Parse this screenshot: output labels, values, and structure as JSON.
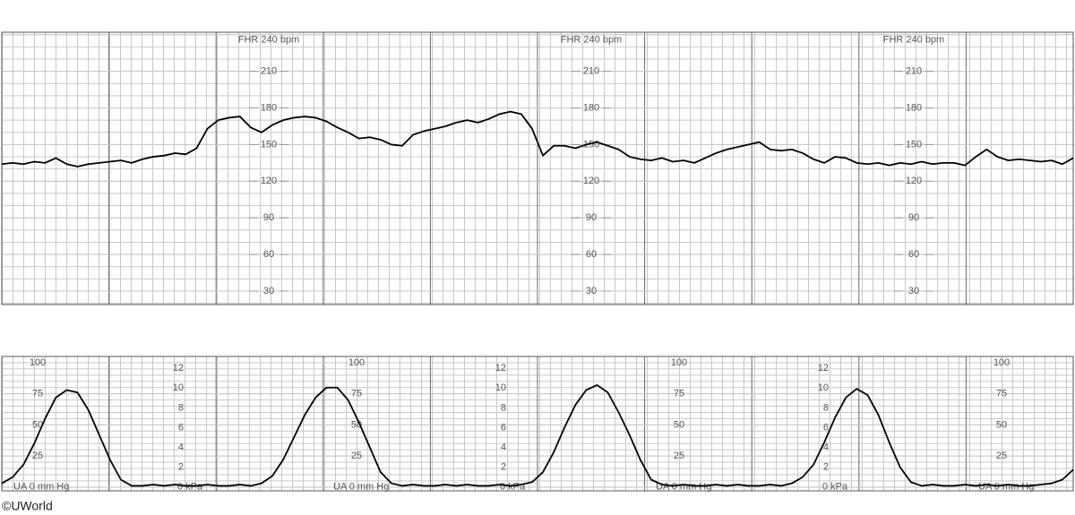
{
  "chart_data": [
    {
      "type": "line",
      "values": [
        134,
        135,
        134,
        136,
        135,
        139,
        134,
        132,
        134,
        135,
        136,
        137,
        135,
        138,
        140,
        141,
        143,
        142,
        147,
        163,
        170,
        172,
        173,
        164,
        160,
        166,
        170,
        172,
        173,
        172,
        169,
        164,
        160,
        155,
        156,
        154,
        150,
        149,
        158,
        161,
        163,
        165,
        168,
        170,
        168,
        171,
        175,
        177,
        175,
        163,
        141,
        149,
        149,
        147,
        150,
        152,
        149,
        146,
        140,
        138,
        137,
        139,
        136,
        137,
        135,
        139,
        143,
        146,
        148,
        150,
        152,
        146,
        145,
        146,
        143,
        138,
        135,
        140,
        139,
        135,
        134,
        135,
        133,
        135,
        134,
        136,
        134,
        135,
        135,
        133,
        140,
        146,
        140,
        137,
        138,
        137,
        136,
        137,
        134,
        139
      ],
      "color": "#000000",
      "ylim": [
        19,
        242
      ],
      "yticks": [
        30,
        60,
        90,
        120,
        150,
        180,
        210,
        {
          "value": 240,
          "label": "FHR 240 bpm"
        }
      ],
      "grid": true
    },
    {
      "type": "line",
      "values": [
        3,
        8,
        18,
        35,
        55,
        72,
        78,
        76,
        62,
        42,
        22,
        6,
        1,
        1,
        2,
        1,
        2,
        1,
        1,
        2,
        1,
        1,
        2,
        1,
        3,
        9,
        22,
        40,
        58,
        72,
        80,
        80,
        70,
        52,
        32,
        12,
        3,
        1,
        2,
        1,
        1,
        2,
        1,
        2,
        1,
        1,
        2,
        1,
        2,
        4,
        12,
        28,
        48,
        66,
        78,
        82,
        76,
        60,
        42,
        22,
        6,
        2,
        1,
        2,
        1,
        1,
        2,
        1,
        2,
        1,
        1,
        2,
        1,
        3,
        8,
        18,
        36,
        56,
        72,
        79,
        74,
        58,
        36,
        16,
        4,
        1,
        2,
        1,
        1,
        2,
        1,
        2,
        1,
        2,
        1,
        1,
        2,
        3,
        6,
        14
      ],
      "color": "#000000",
      "ylim": [
        -3,
        105
      ],
      "yticks": [
        {
          "value": 0,
          "label": "UA  0 mm Hg"
        },
        25,
        50,
        75,
        100
      ],
      "y2lim": [
        -0.4,
        13.2
      ],
      "y2ticks": [
        {
          "value": 0,
          "label": "0 kPa"
        },
        2,
        4,
        6,
        8,
        10,
        12
      ],
      "grid": true
    }
  ],
  "credit": "©UWorld"
}
